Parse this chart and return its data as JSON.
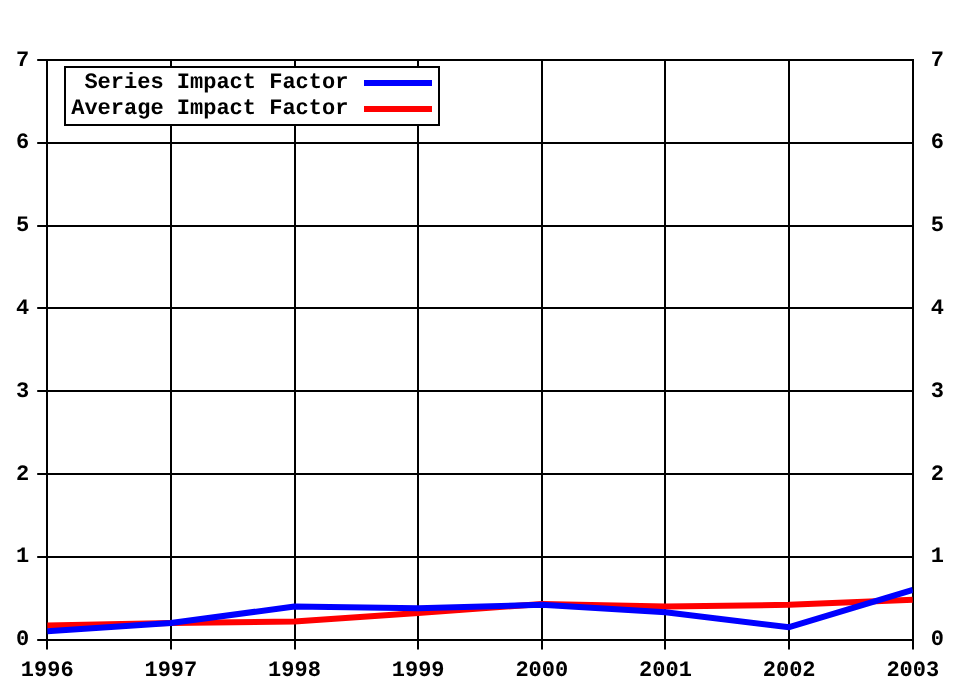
{
  "chart_data": {
    "type": "line",
    "x": [
      1996,
      1997,
      1998,
      1999,
      2000,
      2001,
      2002,
      2003
    ],
    "series": [
      {
        "name": "Series Impact Factor",
        "color": "#0000ff",
        "values": [
          0.1,
          0.2,
          0.4,
          0.38,
          0.42,
          0.33,
          0.15,
          0.6
        ]
      },
      {
        "name": "Average Impact Factor",
        "color": "#ff0000",
        "values": [
          0.17,
          0.2,
          0.22,
          0.32,
          0.43,
          0.4,
          0.42,
          0.48
        ]
      }
    ],
    "xlim": [
      1996,
      2003
    ],
    "xticks": [
      1996,
      1997,
      1998,
      1999,
      2000,
      2001,
      2002,
      2003
    ],
    "ylim": [
      0,
      7
    ],
    "yticks": [
      0,
      1,
      2,
      3,
      4,
      5,
      6,
      7
    ],
    "y2lim": [
      0,
      7
    ],
    "y2ticks": [
      0,
      1,
      2,
      3,
      4,
      5,
      6,
      7
    ],
    "grid": true,
    "legend": "top left",
    "marker": "none",
    "line_style": "solid"
  }
}
